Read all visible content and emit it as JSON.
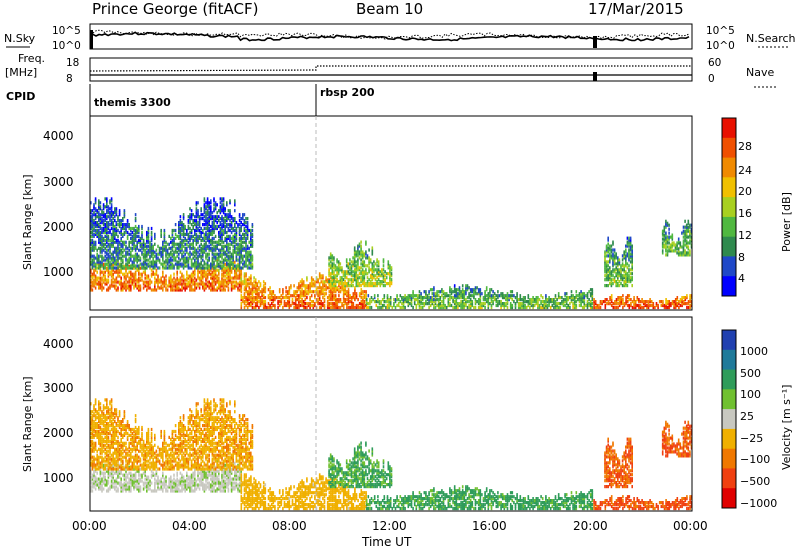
{
  "header": {
    "station": "Prince George (fitACF)",
    "beam": "Beam 10",
    "date": "17/Mar/2015"
  },
  "top_panels": {
    "nsky_label": "N.Sky",
    "nsearch_label": "N.Search",
    "noise_ticks_left": [
      "10^5",
      "10^0"
    ],
    "noise_ticks_right": [
      "10^5",
      "10^0"
    ],
    "freq_label": "Freq.",
    "freq_unit": "[MHz]",
    "freq_ticks": [
      "18",
      "8"
    ],
    "nave_label": "Nave",
    "nave_ticks": [
      "60",
      "0"
    ],
    "cpid_label": "CPID",
    "cpid_segments": [
      {
        "name": "themis 3300",
        "start_hour": 0
      },
      {
        "name": "rbsp 200",
        "start_hour": 9
      }
    ]
  },
  "power_panel": {
    "ylabel": "Slant Range [km]",
    "yticks": [
      "4000",
      "3000",
      "2000",
      "1000"
    ],
    "colorbar_label": "Power [dB]",
    "colorbar_ticks": [
      "28",
      "24",
      "20",
      "16",
      "12",
      "8",
      "4"
    ]
  },
  "velocity_panel": {
    "ylabel": "Slant Range [km]",
    "yticks": [
      "4000",
      "3000",
      "2000",
      "1000"
    ],
    "colorbar_label": "Velocity [m s⁻¹]",
    "colorbar_ticks": [
      "1000",
      "500",
      "100",
      "25",
      "−25",
      "−100",
      "−500",
      "−1000"
    ]
  },
  "xaxis": {
    "ticks": [
      "00:00",
      "04:00",
      "08:00",
      "12:00",
      "16:00",
      "20:00",
      "00:00"
    ],
    "label": "Time UT"
  },
  "colors": {
    "power_scale": [
      "#0000ff",
      "#1f48c8",
      "#2f8a4e",
      "#50b840",
      "#a8d020",
      "#f0c000",
      "#f08a00",
      "#f05000",
      "#e81000"
    ],
    "velocity_scale": [
      "#2040b0",
      "#1f7a9a",
      "#2f9c5a",
      "#70c030",
      "#c8c8c0",
      "#f0b000",
      "#f07800",
      "#f04010",
      "#e00000"
    ]
  },
  "chart_data": {
    "type": "heatmap",
    "x_axis": "Time UT (hours)",
    "x_range_hours": [
      0,
      24
    ],
    "y_axis": "Slant Range [km]",
    "y_range_km": [
      180,
      4600
    ],
    "beam": 10,
    "power_range_db": [
      0,
      32
    ],
    "velocity_range_ms": [
      -1000,
      1000
    ],
    "echo_regions": [
      {
        "t_start": 0.0,
        "t_end": 6.0,
        "r_min": 600,
        "r_max": 1300,
        "power_db": 26,
        "velocity_ms": 10
      },
      {
        "t_start": 0.0,
        "t_end": 6.5,
        "r_min": 1100,
        "r_max": 2700,
        "power_db": 10,
        "velocity_ms": -80
      },
      {
        "t_start": 6.0,
        "t_end": 11.0,
        "r_min": 200,
        "r_max": 1000,
        "power_db": 26,
        "velocity_ms": -60
      },
      {
        "t_start": 9.5,
        "t_end": 12.0,
        "r_min": 700,
        "r_max": 1700,
        "power_db": 16,
        "velocity_ms": 120
      },
      {
        "t_start": 11.0,
        "t_end": 20.0,
        "r_min": 200,
        "r_max": 700,
        "power_db": 14,
        "velocity_ms": 150
      },
      {
        "t_start": 20.0,
        "t_end": 24.0,
        "r_min": 200,
        "r_max": 500,
        "power_db": 28,
        "velocity_ms": -400
      },
      {
        "t_start": 20.5,
        "t_end": 21.6,
        "r_min": 700,
        "r_max": 1800,
        "power_db": 14,
        "velocity_ms": -300
      },
      {
        "t_start": 22.8,
        "t_end": 24.0,
        "r_min": 1400,
        "r_max": 2200,
        "power_db": 14,
        "velocity_ms": -350
      }
    ]
  }
}
